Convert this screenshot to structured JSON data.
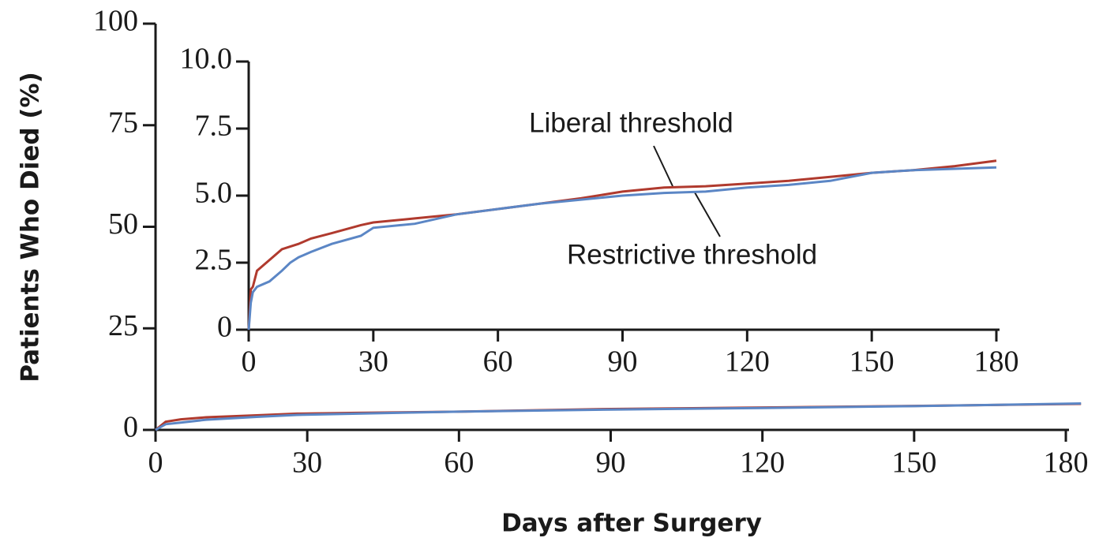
{
  "chart_data": [
    {
      "type": "line",
      "ylabel": "Patients Who Died (%)",
      "xlabel": "Days after Surgery",
      "x": [
        0,
        2,
        5,
        10,
        20,
        28,
        40,
        60,
        90,
        120,
        150,
        183
      ],
      "series": [
        {
          "name": "Liberal threshold",
          "color": "#b03a2e",
          "values": [
            0,
            2,
            2.6,
            3.1,
            3.6,
            4,
            4.2,
            4.5,
            5.15,
            5.5,
            5.9,
            6.4
          ]
        },
        {
          "name": "Restrictive threshold",
          "color": "#5b86c5",
          "values": [
            0,
            1.4,
            1.8,
            2.5,
            3.2,
            3.7,
            4.0,
            4.5,
            5.0,
            5.4,
            5.85,
            6.5
          ]
        }
      ],
      "xlim": [
        0,
        180
      ],
      "xticks": [
        0,
        30,
        60,
        90,
        120,
        150,
        180
      ],
      "ylim": [
        0,
        100
      ],
      "yticks": [
        0,
        25,
        50,
        75,
        100
      ]
    },
    {
      "type": "line",
      "annotations": [
        "Liberal threshold",
        "Restrictive threshold"
      ],
      "x": [
        0,
        0.5,
        1,
        2,
        5,
        8,
        10,
        12,
        15,
        20,
        27,
        30,
        40,
        50,
        60,
        70,
        80,
        90,
        100,
        110,
        120,
        130,
        140,
        150,
        160,
        170,
        180
      ],
      "series": [
        {
          "name": "Liberal threshold",
          "color": "#b03a2e",
          "values": [
            0,
            1.5,
            1.6,
            2.2,
            2.6,
            3.0,
            3.1,
            3.2,
            3.4,
            3.6,
            3.9,
            4.0,
            4.15,
            4.3,
            4.5,
            4.7,
            4.9,
            5.15,
            5.3,
            5.35,
            5.45,
            5.55,
            5.7,
            5.85,
            5.95,
            6.1,
            6.3
          ]
        },
        {
          "name": "Restrictive threshold",
          "color": "#5b86c5",
          "values": [
            0,
            1.0,
            1.4,
            1.6,
            1.8,
            2.2,
            2.5,
            2.7,
            2.9,
            3.2,
            3.5,
            3.8,
            3.95,
            4.3,
            4.5,
            4.7,
            4.85,
            5.0,
            5.1,
            5.15,
            5.3,
            5.4,
            5.55,
            5.85,
            5.95,
            6.0,
            6.05
          ]
        }
      ],
      "xlim": [
        0,
        180
      ],
      "xticks": [
        0,
        30,
        60,
        90,
        120,
        150,
        180
      ],
      "ylim": [
        0,
        10
      ],
      "yticks": [
        0,
        2.5,
        {
          "value": 5,
          "label": "5.0"
        },
        7.5,
        {
          "value": 10,
          "label": "10.0"
        }
      ]
    }
  ]
}
